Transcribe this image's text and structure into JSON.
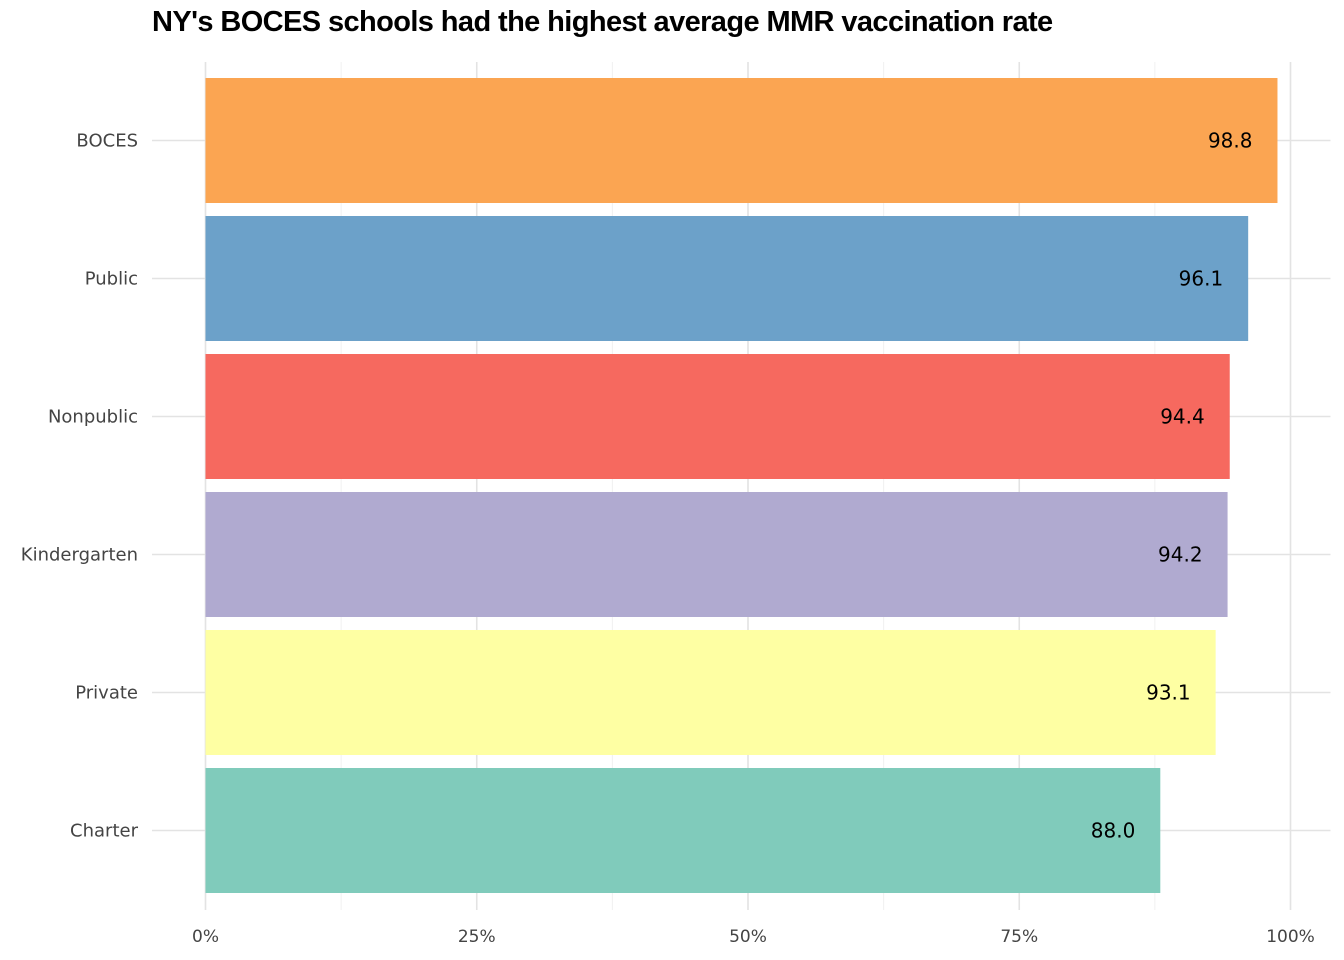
{
  "chart_data": {
    "type": "bar",
    "orientation": "horizontal",
    "title": "NY's BOCES schools had the highest average MMR vaccination rate",
    "xlabel": "",
    "ylabel": "",
    "xlim": [
      0,
      100
    ],
    "x_ticks": [
      0,
      25,
      50,
      75,
      100
    ],
    "x_tick_labels": [
      "0%",
      "25%",
      "50%",
      "75%",
      "100%"
    ],
    "categories": [
      "BOCES",
      "Public",
      "Nonpublic",
      "Kindergarten",
      "Private",
      "Charter"
    ],
    "values": [
      98.8,
      96.1,
      94.4,
      94.2,
      93.1,
      88.0
    ],
    "value_labels": [
      "98.8",
      "96.1",
      "94.4",
      "94.2",
      "93.1",
      "88.0"
    ],
    "colors": [
      "#fba552",
      "#6ca1c9",
      "#f6695f",
      "#b0aad0",
      "#feffa3",
      "#80cbbb"
    ],
    "grid": true,
    "legend": "none"
  }
}
